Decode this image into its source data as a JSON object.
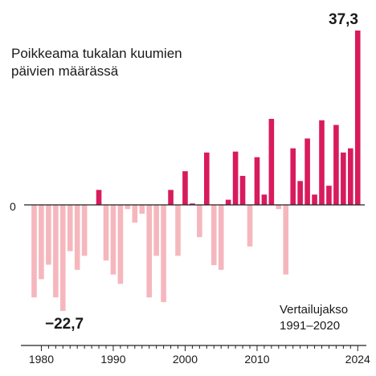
{
  "chart_data": {
    "type": "bar",
    "title": "Poikkeama tukalan kuumien päivien määrässä",
    "note_line1": "Vertailujakso",
    "note_line2": "1991–2020",
    "zero_label": "0",
    "max_label": "37,3",
    "min_label": "−22,7",
    "x": [
      1979,
      1980,
      1981,
      1982,
      1983,
      1984,
      1985,
      1986,
      1987,
      1988,
      1989,
      1990,
      1991,
      1992,
      1993,
      1994,
      1995,
      1996,
      1997,
      1998,
      1999,
      2000,
      2001,
      2002,
      2003,
      2004,
      2005,
      2006,
      2007,
      2008,
      2009,
      2010,
      2011,
      2012,
      2013,
      2014,
      2015,
      2016,
      2017,
      2018,
      2019,
      2020,
      2021,
      2022,
      2023,
      2024
    ],
    "values": [
      -19.8,
      -15.9,
      -12.8,
      -19.8,
      -22.7,
      -9.9,
      -13.9,
      -10.9,
      0,
      3.2,
      -11.9,
      -14.9,
      -16.9,
      -0.9,
      -3.8,
      -1.9,
      -19.8,
      -10.9,
      -20.8,
      3.2,
      -10.9,
      7.2,
      0.3,
      -6.9,
      11.2,
      -12.9,
      -13.9,
      1.1,
      11.4,
      6.2,
      -8.9,
      10.2,
      2.2,
      18.4,
      -0.9,
      -14.9,
      12.1,
      5.1,
      14.2,
      2.2,
      18.1,
      4.1,
      17.1,
      11.2,
      12.1,
      37.3
    ],
    "ylim": [
      -30,
      38
    ],
    "xticks": [
      "1980",
      "1990",
      "2000",
      "2010",
      "2024"
    ],
    "xtick_years": [
      1980,
      1990,
      2000,
      2010,
      2024
    ],
    "colors": {
      "positive": "#d81b5c",
      "negative": "#f5b7bd",
      "axis": "#222222"
    }
  }
}
